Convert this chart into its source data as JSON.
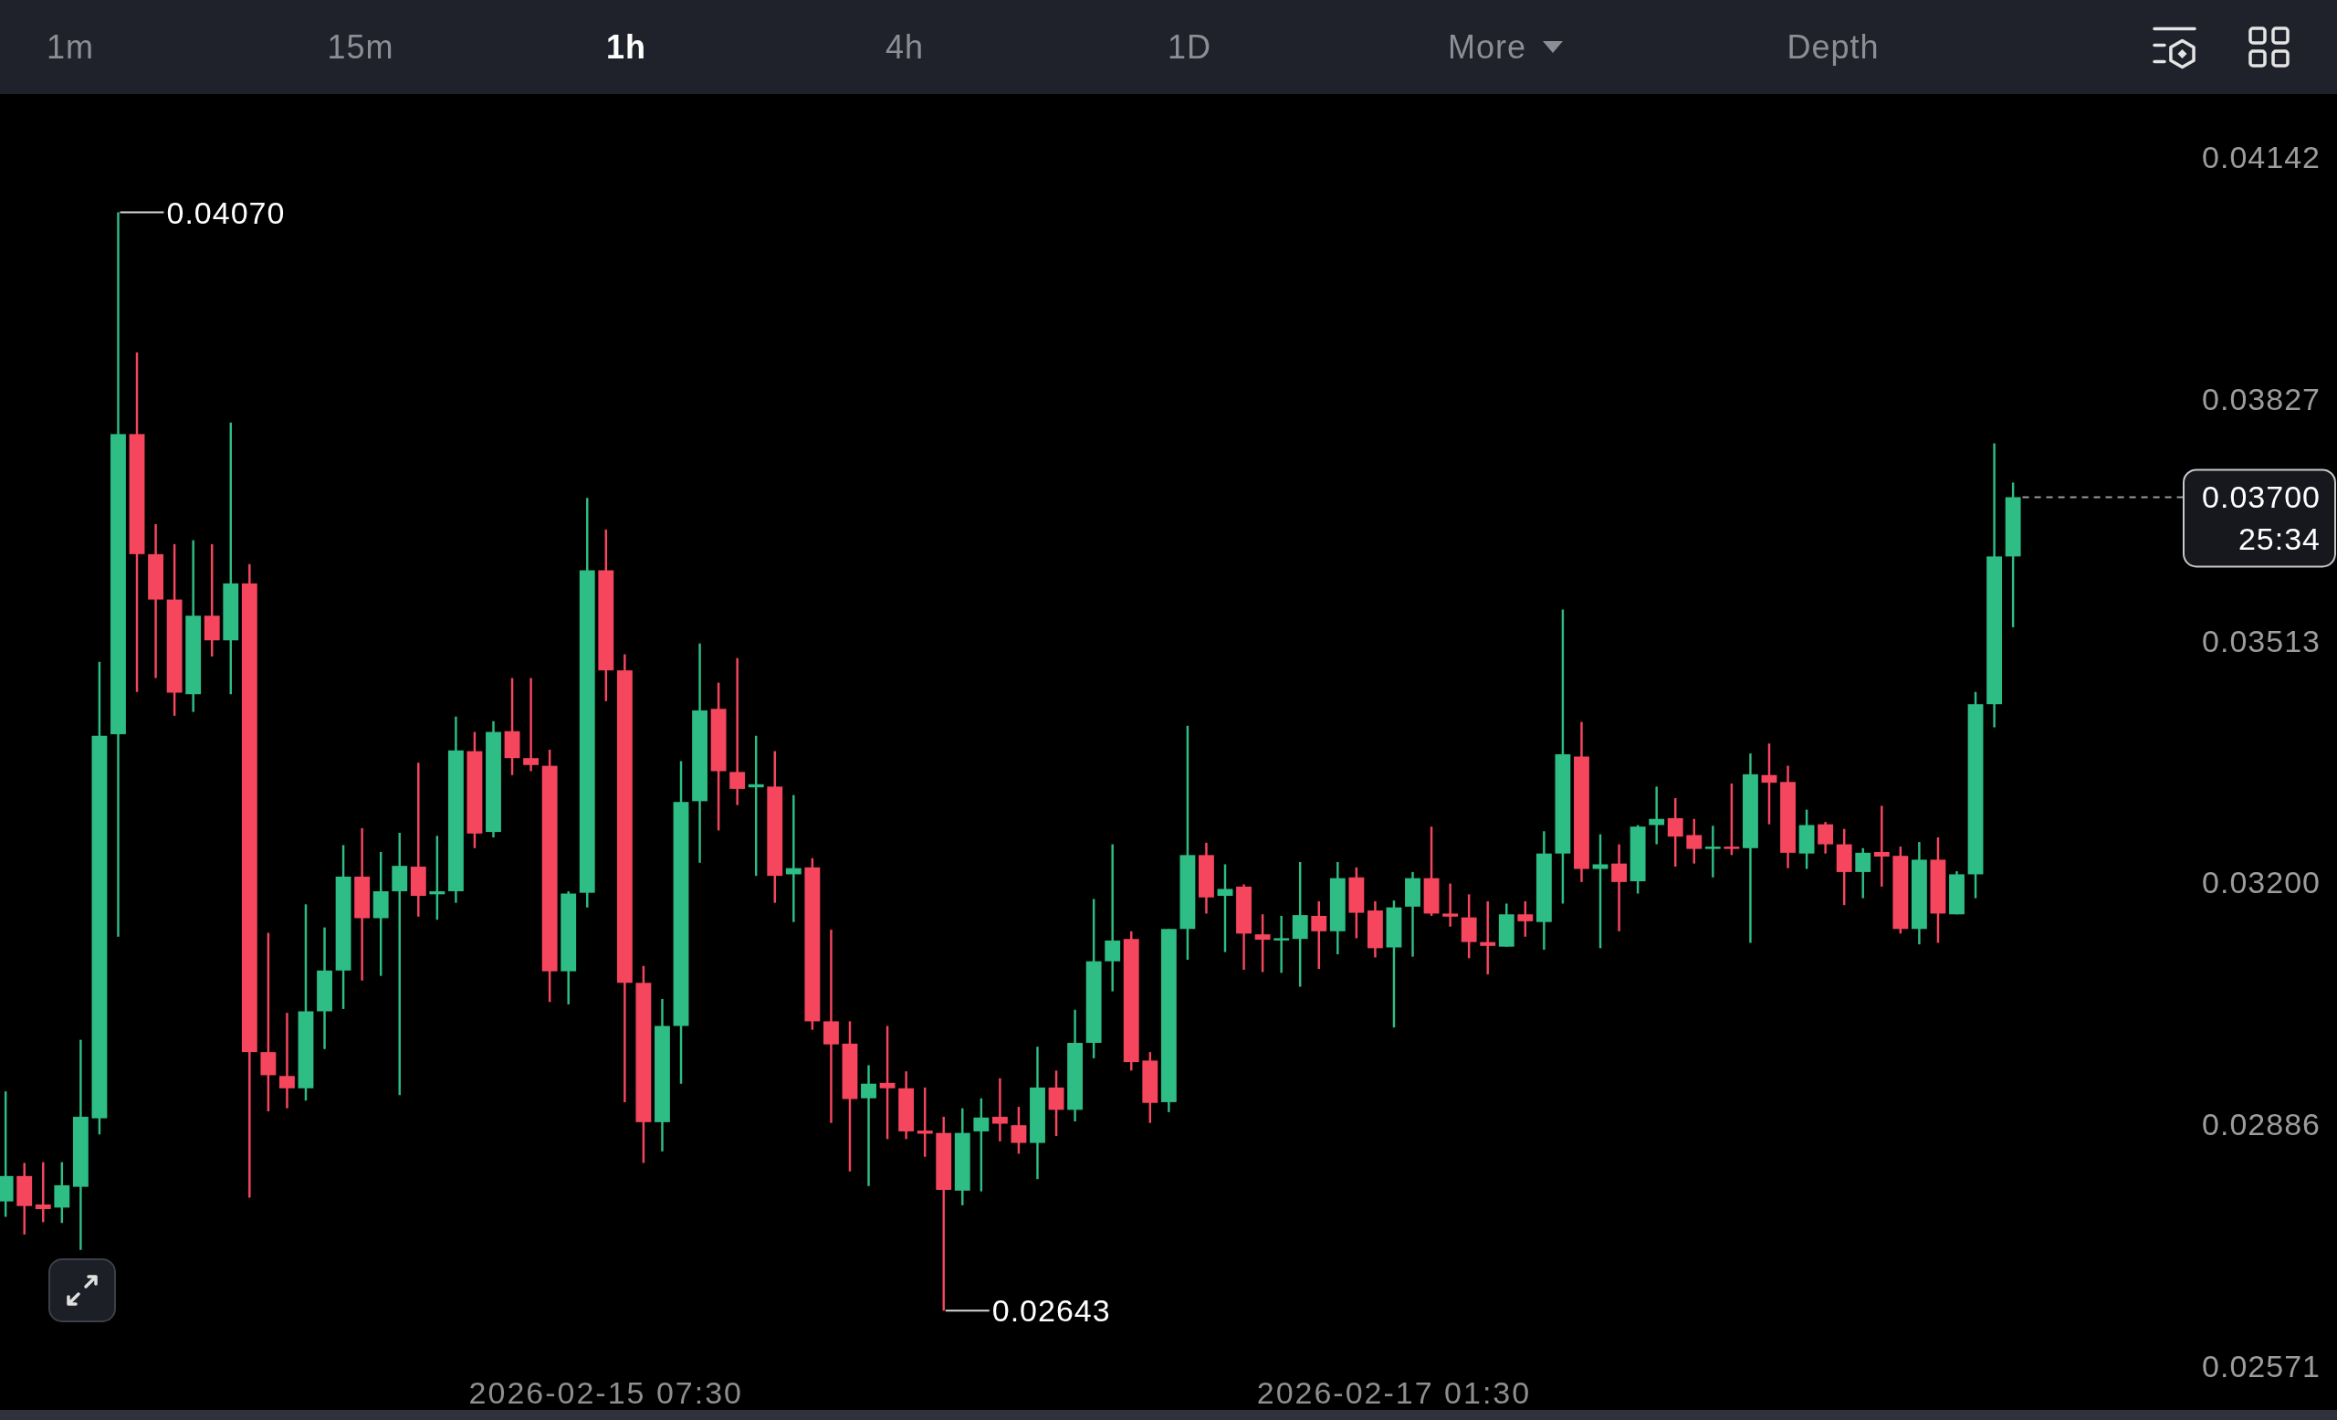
{
  "chart_data": {
    "type": "candlestick",
    "x": [
      "2026-02-13T23:30",
      "2026-02-14T00:30",
      "2026-02-14T01:30",
      "2026-02-14T02:30",
      "2026-02-14T03:30",
      "2026-02-14T04:30",
      "2026-02-14T05:30",
      "2026-02-14T06:30",
      "2026-02-14T07:30",
      "2026-02-14T08:30",
      "2026-02-14T09:30",
      "2026-02-14T10:30",
      "2026-02-14T11:30",
      "2026-02-14T12:30",
      "2026-02-14T13:30",
      "2026-02-14T14:30",
      "2026-02-14T15:30",
      "2026-02-14T16:30",
      "2026-02-14T17:30",
      "2026-02-14T18:30",
      "2026-02-14T19:30",
      "2026-02-14T20:30",
      "2026-02-14T21:30",
      "2026-02-14T22:30",
      "2026-02-14T23:30",
      "2026-02-15T00:30",
      "2026-02-15T01:30",
      "2026-02-15T02:30",
      "2026-02-15T03:30",
      "2026-02-15T04:30",
      "2026-02-15T05:30",
      "2026-02-15T06:30",
      "2026-02-15T07:30",
      "2026-02-15T08:30",
      "2026-02-15T09:30",
      "2026-02-15T10:30",
      "2026-02-15T11:30",
      "2026-02-15T12:30",
      "2026-02-15T13:30",
      "2026-02-15T14:30",
      "2026-02-15T15:30",
      "2026-02-15T16:30",
      "2026-02-15T17:30",
      "2026-02-15T18:30",
      "2026-02-15T19:30",
      "2026-02-15T20:30",
      "2026-02-15T21:30",
      "2026-02-15T22:30",
      "2026-02-15T23:30",
      "2026-02-16T00:30",
      "2026-02-16T01:30",
      "2026-02-16T02:30",
      "2026-02-16T03:30",
      "2026-02-16T04:30",
      "2026-02-16T05:30",
      "2026-02-16T06:30",
      "2026-02-16T07:30",
      "2026-02-16T08:30",
      "2026-02-16T09:30",
      "2026-02-16T10:30",
      "2026-02-16T11:30",
      "2026-02-16T12:30",
      "2026-02-16T13:30",
      "2026-02-16T14:30",
      "2026-02-16T15:30",
      "2026-02-16T16:30",
      "2026-02-16T17:30",
      "2026-02-16T18:30",
      "2026-02-16T19:30",
      "2026-02-16T20:30",
      "2026-02-16T21:30",
      "2026-02-16T22:30",
      "2026-02-16T23:30",
      "2026-02-17T00:30",
      "2026-02-17T01:30",
      "2026-02-17T02:30",
      "2026-02-17T03:30",
      "2026-02-17T04:30",
      "2026-02-17T05:30",
      "2026-02-17T06:30",
      "2026-02-17T07:30",
      "2026-02-17T08:30",
      "2026-02-17T09:30",
      "2026-02-17T10:30",
      "2026-02-17T11:30",
      "2026-02-17T12:30",
      "2026-02-17T13:30",
      "2026-02-17T14:30",
      "2026-02-17T15:30",
      "2026-02-17T16:30",
      "2026-02-17T17:30",
      "2026-02-17T18:30",
      "2026-02-17T19:30",
      "2026-02-17T20:30",
      "2026-02-17T21:30",
      "2026-02-17T22:30",
      "2026-02-17T23:30",
      "2026-02-18T00:30",
      "2026-02-18T01:30",
      "2026-02-18T02:30",
      "2026-02-18T03:30",
      "2026-02-18T04:30",
      "2026-02-18T05:30",
      "2026-02-18T06:30",
      "2026-02-18T07:30",
      "2026-02-18T08:30",
      "2026-02-18T09:30",
      "2026-02-18T10:30"
    ],
    "ohlc": [
      [
        0.02785,
        0.02928,
        0.02765,
        0.02818
      ],
      [
        0.02818,
        0.02835,
        0.02742,
        0.02779
      ],
      [
        0.02781,
        0.02836,
        0.02758,
        0.02775
      ],
      [
        0.02777,
        0.02836,
        0.02757,
        0.02806
      ],
      [
        0.02804,
        0.02995,
        0.02722,
        0.02895
      ],
      [
        0.02893,
        0.03486,
        0.02872,
        0.0339
      ],
      [
        0.03392,
        0.0407,
        0.03129,
        0.03782
      ],
      [
        0.03782,
        0.03888,
        0.03447,
        0.03626
      ],
      [
        0.03626,
        0.03665,
        0.03465,
        0.03567
      ],
      [
        0.03567,
        0.03639,
        0.03416,
        0.03446
      ],
      [
        0.03444,
        0.03644,
        0.03421,
        0.03546
      ],
      [
        0.03546,
        0.03639,
        0.03493,
        0.03514
      ],
      [
        0.03514,
        0.03797,
        0.03444,
        0.03588
      ],
      [
        0.03588,
        0.03613,
        0.0279,
        0.02979
      ],
      [
        0.02979,
        0.03134,
        0.02902,
        0.02949
      ],
      [
        0.02948,
        0.0303,
        0.02906,
        0.02932
      ],
      [
        0.02932,
        0.03171,
        0.02916,
        0.03032
      ],
      [
        0.03032,
        0.03141,
        0.02983,
        0.03085
      ],
      [
        0.03085,
        0.03248,
        0.03035,
        0.03207
      ],
      [
        0.03207,
        0.0327,
        0.03072,
        0.03153
      ],
      [
        0.03153,
        0.03239,
        0.03078,
        0.03188
      ],
      [
        0.03188,
        0.03264,
        0.02923,
        0.03221
      ],
      [
        0.0322,
        0.03355,
        0.03155,
        0.03182
      ],
      [
        0.03184,
        0.0326,
        0.03151,
        0.03188
      ],
      [
        0.03188,
        0.03415,
        0.03173,
        0.03371
      ],
      [
        0.0337,
        0.03395,
        0.03244,
        0.03263
      ],
      [
        0.03265,
        0.03409,
        0.03258,
        0.03395
      ],
      [
        0.03396,
        0.03465,
        0.03339,
        0.03361
      ],
      [
        0.03361,
        0.03465,
        0.03344,
        0.03352
      ],
      [
        0.03351,
        0.03372,
        0.03044,
        0.03084
      ],
      [
        0.03084,
        0.03188,
        0.03041,
        0.03185
      ],
      [
        0.03186,
        0.03699,
        0.03167,
        0.03605
      ],
      [
        0.03605,
        0.03658,
        0.03435,
        0.03475
      ],
      [
        0.03475,
        0.03496,
        0.02914,
        0.03069
      ],
      [
        0.03069,
        0.03091,
        0.02835,
        0.02888
      ],
      [
        0.02888,
        0.03048,
        0.0285,
        0.03013
      ],
      [
        0.03013,
        0.03357,
        0.02938,
        0.03304
      ],
      [
        0.03305,
        0.0351,
        0.03225,
        0.03423
      ],
      [
        0.03425,
        0.03459,
        0.03267,
        0.03344
      ],
      [
        0.03343,
        0.03491,
        0.033,
        0.03321
      ],
      [
        0.03323,
        0.0339,
        0.03208,
        0.03327
      ],
      [
        0.03324,
        0.0337,
        0.03173,
        0.03208
      ],
      [
        0.0321,
        0.03313,
        0.03148,
        0.03218
      ],
      [
        0.03219,
        0.03231,
        0.03008,
        0.03019
      ],
      [
        0.03019,
        0.03138,
        0.02887,
        0.02989
      ],
      [
        0.0299,
        0.03019,
        0.02824,
        0.02918
      ],
      [
        0.02919,
        0.02962,
        0.02805,
        0.02938
      ],
      [
        0.02939,
        0.03013,
        0.02866,
        0.02932
      ],
      [
        0.02932,
        0.02954,
        0.02866,
        0.02876
      ],
      [
        0.02877,
        0.02933,
        0.02843,
        0.02873
      ],
      [
        0.02874,
        0.02895,
        0.02643,
        0.028
      ],
      [
        0.02799,
        0.02906,
        0.0278,
        0.02874
      ],
      [
        0.02876,
        0.02919,
        0.02798,
        0.02894
      ],
      [
        0.02895,
        0.02945,
        0.02863,
        0.02886
      ],
      [
        0.02884,
        0.02908,
        0.02847,
        0.02861
      ],
      [
        0.02861,
        0.02986,
        0.02814,
        0.02933
      ],
      [
        0.02933,
        0.02955,
        0.0287,
        0.02904
      ],
      [
        0.02904,
        0.03034,
        0.02889,
        0.02991
      ],
      [
        0.02991,
        0.03178,
        0.02971,
        0.03097
      ],
      [
        0.03097,
        0.03249,
        0.03058,
        0.03124
      ],
      [
        0.03126,
        0.03136,
        0.02955,
        0.02966
      ],
      [
        0.02968,
        0.02979,
        0.02887,
        0.02913
      ],
      [
        0.02914,
        0.03139,
        0.02901,
        0.03139
      ],
      [
        0.03139,
        0.03403,
        0.03099,
        0.03235
      ],
      [
        0.03235,
        0.03251,
        0.03159,
        0.0318
      ],
      [
        0.03182,
        0.03223,
        0.03109,
        0.03191
      ],
      [
        0.03194,
        0.03197,
        0.03086,
        0.03133
      ],
      [
        0.03132,
        0.03158,
        0.03083,
        0.03125
      ],
      [
        0.03125,
        0.03156,
        0.03082,
        0.03127
      ],
      [
        0.03126,
        0.03226,
        0.03064,
        0.03157
      ],
      [
        0.03156,
        0.03175,
        0.03087,
        0.03136
      ],
      [
        0.03136,
        0.03226,
        0.03106,
        0.03205
      ],
      [
        0.03206,
        0.03219,
        0.03127,
        0.0316
      ],
      [
        0.03163,
        0.03175,
        0.03102,
        0.03114
      ],
      [
        0.03115,
        0.03176,
        0.03011,
        0.03167
      ],
      [
        0.03168,
        0.03213,
        0.03103,
        0.03205
      ],
      [
        0.03205,
        0.03272,
        0.03156,
        0.03159
      ],
      [
        0.03159,
        0.03198,
        0.03142,
        0.03155
      ],
      [
        0.03154,
        0.03184,
        0.03101,
        0.03122
      ],
      [
        0.03122,
        0.03175,
        0.0308,
        0.03117
      ],
      [
        0.03116,
        0.03172,
        0.03116,
        0.03158
      ],
      [
        0.03158,
        0.03175,
        0.03129,
        0.03149
      ],
      [
        0.03148,
        0.03266,
        0.03112,
        0.03237
      ],
      [
        0.03237,
        0.03554,
        0.03172,
        0.03366
      ],
      [
        0.03363,
        0.03408,
        0.032,
        0.03217
      ],
      [
        0.03217,
        0.03262,
        0.03114,
        0.03223
      ],
      [
        0.03224,
        0.03249,
        0.03136,
        0.032
      ],
      [
        0.03201,
        0.03274,
        0.03185,
        0.03272
      ],
      [
        0.03274,
        0.03324,
        0.03249,
        0.03282
      ],
      [
        0.03283,
        0.03309,
        0.0322,
        0.03259
      ],
      [
        0.03261,
        0.03282,
        0.03224,
        0.03243
      ],
      [
        0.03243,
        0.03273,
        0.03206,
        0.03246
      ],
      [
        0.03246,
        0.03328,
        0.03235,
        0.03243
      ],
      [
        0.03244,
        0.03367,
        0.03121,
        0.0334
      ],
      [
        0.03339,
        0.0338,
        0.03275,
        0.03329
      ],
      [
        0.0333,
        0.03351,
        0.03218,
        0.03238
      ],
      [
        0.03237,
        0.03294,
        0.03217,
        0.03274
      ],
      [
        0.03275,
        0.03278,
        0.03237,
        0.03249
      ],
      [
        0.03249,
        0.03269,
        0.0317,
        0.03213
      ],
      [
        0.03213,
        0.03244,
        0.03179,
        0.03238
      ],
      [
        0.03239,
        0.03299,
        0.03194,
        0.03233
      ],
      [
        0.03234,
        0.03246,
        0.03133,
        0.03139
      ],
      [
        0.03139,
        0.03252,
        0.03119,
        0.03229
      ],
      [
        0.03229,
        0.03258,
        0.03121,
        0.03159
      ],
      [
        0.03158,
        0.03214,
        0.03158,
        0.0321
      ],
      [
        0.0321,
        0.03447,
        0.03179,
        0.03431
      ],
      [
        0.03431,
        0.0377,
        0.03401,
        0.03623
      ],
      [
        0.03623,
        0.03719,
        0.03531,
        0.037
      ]
    ],
    "colors": [
      "#2ebd85",
      "#f6465d",
      "#f6465d",
      "#2ebd85",
      "#2ebd85",
      "#2ebd85",
      "#2ebd85",
      "#f6465d",
      "#f6465d",
      "#f6465d",
      "#2ebd85",
      "#f6465d",
      "#2ebd85",
      "#f6465d",
      "#f6465d",
      "#f6465d",
      "#2ebd85",
      "#2ebd85",
      "#2ebd85",
      "#f6465d",
      "#2ebd85",
      "#2ebd85",
      "#f6465d",
      "#2ebd85",
      "#2ebd85",
      "#f6465d",
      "#2ebd85",
      "#f6465d",
      "#f6465d",
      "#f6465d",
      "#2ebd85",
      "#2ebd85",
      "#f6465d",
      "#f6465d",
      "#f6465d",
      "#2ebd85",
      "#2ebd85",
      "#2ebd85",
      "#f6465d",
      "#f6465d",
      "#2ebd85",
      "#f6465d",
      "#2ebd85",
      "#f6465d",
      "#f6465d",
      "#f6465d",
      "#2ebd85",
      "#f6465d",
      "#f6465d",
      "#f6465d",
      "#f6465d",
      "#2ebd85",
      "#2ebd85",
      "#f6465d",
      "#f6465d",
      "#2ebd85",
      "#f6465d",
      "#2ebd85",
      "#2ebd85",
      "#2ebd85",
      "#f6465d",
      "#f6465d",
      "#2ebd85",
      "#2ebd85",
      "#f6465d",
      "#2ebd85",
      "#f6465d",
      "#f6465d",
      "#2ebd85",
      "#2ebd85",
      "#f6465d",
      "#2ebd85",
      "#f6465d",
      "#f6465d",
      "#2ebd85",
      "#2ebd85",
      "#f6465d",
      "#f6465d",
      "#f6465d",
      "#f6465d",
      "#2ebd85",
      "#f6465d",
      "#2ebd85",
      "#2ebd85",
      "#f6465d",
      "#2ebd85",
      "#f6465d",
      "#2ebd85",
      "#2ebd85",
      "#f6465d",
      "#f6465d",
      "#2ebd85",
      "#f6465d",
      "#2ebd85",
      "#f6465d",
      "#f6465d",
      "#2ebd85",
      "#f6465d",
      "#f6465d",
      "#2ebd85",
      "#f6465d",
      "#f6465d",
      "#2ebd85",
      "#f6465d",
      "#2ebd85",
      "#2ebd85",
      "#2ebd85",
      "#2ebd85"
    ],
    "xlim": [
      "2026-02-13T23:12",
      "2026-02-19T03:46"
    ],
    "xticks": [
      {
        "value": "2026-02-15T07:30",
        "label": "2026-02-15 07:30"
      },
      {
        "value": "2026-02-17T01:30",
        "label": "2026-02-17 01:30"
      }
    ],
    "ylim": [
      0.02501,
      0.04346
    ],
    "yticks": [
      0.04142,
      0.03827,
      0.03513,
      {
        "value": 0.032,
        "label": "0.03200"
      },
      0.02886,
      0.02571
    ],
    "ref_lines": [
      {
        "axis": "y",
        "value": 0.037,
        "label": "0.03700\n25:34",
        "line_style": "dashed",
        "color": "#9a9a9a"
      }
    ],
    "annotations": [
      "1m",
      "15m",
      "1h",
      "4h",
      "1D",
      "More",
      "Depth",
      {
        "text": "0.04070",
        "x": "2026-02-14T05:30",
        "y": 0.0407
      },
      {
        "text": "0.02643",
        "x": "2026-02-16T01:30",
        "y": 0.02643
      }
    ]
  }
}
